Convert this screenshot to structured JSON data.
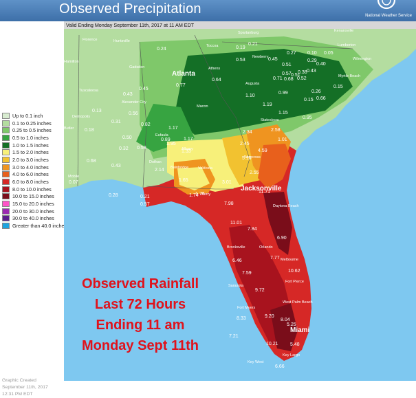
{
  "header": {
    "title": "Observed Precipitation",
    "agency": "National Weather Service"
  },
  "valid": "Valid Ending Monday September 11th, 2017 at 11 AM EDT",
  "legend": [
    {
      "label": "Up to 0.1 inch",
      "color": "#d8ecd0"
    },
    {
      "label": "0.1 to 0.25 inches",
      "color": "#b4dda0"
    },
    {
      "label": "0.25 to 0.5 inches",
      "color": "#7fc86a"
    },
    {
      "label": "0.5 to 1.0 inches",
      "color": "#37a441"
    },
    {
      "label": "1.0 to 1.5 inches",
      "color": "#146f26"
    },
    {
      "label": "1.5 to 2.0 inches",
      "color": "#f7f07a"
    },
    {
      "label": "2.0 to 3.0 inches",
      "color": "#f2c230"
    },
    {
      "label": "3.0 to 4.0 inches",
      "color": "#ef9420"
    },
    {
      "label": "4.0 to 6.0 inches",
      "color": "#e8601c"
    },
    {
      "label": "6.0 to 8.0 inches",
      "color": "#d62826"
    },
    {
      "label": "8.0 to 10.0 inches",
      "color": "#a8131e"
    },
    {
      "label": "10.0 to 15.0 inches",
      "color": "#7a0d1a"
    },
    {
      "label": "15.0 to 20.0 inches",
      "color": "#ff55c8"
    },
    {
      "label": "20.0 to 30.0 inches",
      "color": "#9b2ab0"
    },
    {
      "label": "30.0 to 40.0 inches",
      "color": "#5a1e8c"
    },
    {
      "label": "Greater than 40.0 inches",
      "color": "#1ea4de"
    }
  ],
  "credit": [
    "Graphic Created",
    "September 11th, 2017",
    "12:31 PM EDT"
  ],
  "annotation": [
    "Observed Rainfall",
    "Last 72 Hours",
    "Ending 11 am",
    "Monday Sept 11th"
  ],
  "colors": {
    "ocean": "#7ec8f0",
    "annotation": "#e0121b"
  },
  "map": {
    "major_cities": [
      "Atlanta",
      "Jacksonville",
      "Miami"
    ],
    "cities": [
      "Florence",
      "Huntsville",
      "Hamilton",
      "Gadsden",
      "Tuscaloosa",
      "Alexander City",
      "Demopolis",
      "Butler",
      "Mobile",
      "Eufaula",
      "Dothan",
      "Bainbridge",
      "Albany",
      "Valdosta",
      "Perry",
      "Macon",
      "Athens",
      "Toccoa",
      "Spartanburg",
      "Newberry",
      "Augusta",
      "Statesboro",
      "Waycross",
      "Daytona Beach",
      "Brooksville",
      "Orlando",
      "Melbourne",
      "Fort Pierce",
      "Sarasota",
      "Fort Myers",
      "West Palm Beach",
      "Key Largo",
      "Key West",
      "Kenansville",
      "Lumberton",
      "Wilmington",
      "Myrtle Beach"
    ],
    "values": [
      "0.24",
      "0.19",
      "0.21",
      "0.53",
      "0.45",
      "0.51",
      "0.27",
      "0.10",
      "0.05",
      "0.29",
      "0.51",
      "0.57",
      "0.38",
      "0.43",
      "0.40",
      "0.68",
      "0.26",
      "0.15",
      "0.77",
      "0.64",
      "0.71",
      "0.52",
      "0.43",
      "0.45",
      "0.15",
      "0.13",
      "1.10",
      "0.99",
      "1.19",
      "0.31",
      "0.56",
      "0.66",
      "0.18",
      "1.15",
      "0.95",
      "0.82",
      "1.17",
      "1.17",
      "2.58",
      "1.01",
      "0.50",
      "0.89",
      "2.34",
      "2.45",
      "0.32",
      "0.59",
      "4.59",
      "1.95",
      "2.55",
      "1.65",
      "0.43",
      "2.14",
      "5.10",
      "0.07",
      "0.68",
      "1.33",
      "3.01",
      "0.28",
      "1.74",
      "0.21",
      "0.57",
      "1.76",
      "7.98",
      "11.71",
      "11.01",
      "7.84",
      "6.90",
      "7.77",
      "6.46",
      "7.59",
      "10.62",
      "9.72",
      "9.20",
      "8.33",
      "8.04",
      "5.25",
      "7.21",
      "10.21",
      "5.48",
      "6.66"
    ]
  }
}
